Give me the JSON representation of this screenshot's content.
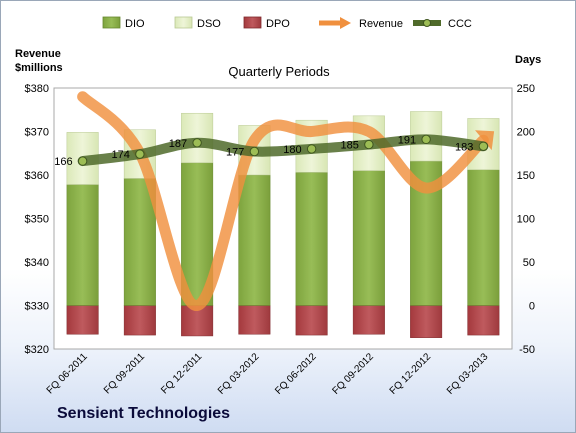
{
  "company": "Sensient Technologies",
  "colors": {
    "dio": "#8cb04a",
    "dso": "#e4efc6",
    "dpo": "#b04a4e",
    "revenue": "#f0903e",
    "ccc": "#4f6a2a"
  },
  "chart_data": {
    "type": "bar",
    "title": "Quarterly Periods",
    "left_axis_label": [
      "Revenue",
      "$millions"
    ],
    "right_axis_label": "Days",
    "left_ylim": [
      320,
      380
    ],
    "right_ylim": [
      -50,
      250
    ],
    "left_ticks": [
      "$320",
      "$330",
      "$340",
      "$350",
      "$360",
      "$370",
      "$380"
    ],
    "right_ticks": [
      "-50",
      "0",
      "50",
      "100",
      "150",
      "200",
      "250"
    ],
    "categories": [
      "FQ 06-2011",
      "FQ 09-2011",
      "FQ 12-2011",
      "FQ 03-2012",
      "FQ 06-2012",
      "FQ 09-2012",
      "FQ 12-2012",
      "FQ 03-2013"
    ],
    "legend": [
      "DIO",
      "DSO",
      "DPO",
      "Revenue",
      "CCC"
    ],
    "legend_position": "top",
    "series": [
      {
        "name": "DIO",
        "axis": "right",
        "values": [
          139,
          146,
          164,
          150,
          153,
          155,
          166,
          156
        ]
      },
      {
        "name": "DSO",
        "axis": "right",
        "values": [
          60,
          56,
          57,
          57,
          60,
          63,
          57,
          59
        ]
      },
      {
        "name": "DPO",
        "axis": "right",
        "values": [
          -33,
          -34,
          -35,
          -33,
          -34,
          -33,
          -37,
          -34
        ]
      },
      {
        "name": "Revenue",
        "axis": "left",
        "type": "line",
        "values": [
          378,
          365,
          330,
          368,
          370,
          370,
          357,
          368
        ]
      },
      {
        "name": "CCC",
        "axis": "right",
        "type": "line",
        "values": [
          166,
          174,
          187,
          177,
          180,
          185,
          191,
          183
        ]
      }
    ],
    "data_labels": [
      "166",
      "174",
      "187",
      "177",
      "180",
      "185",
      "191",
      "183"
    ]
  }
}
